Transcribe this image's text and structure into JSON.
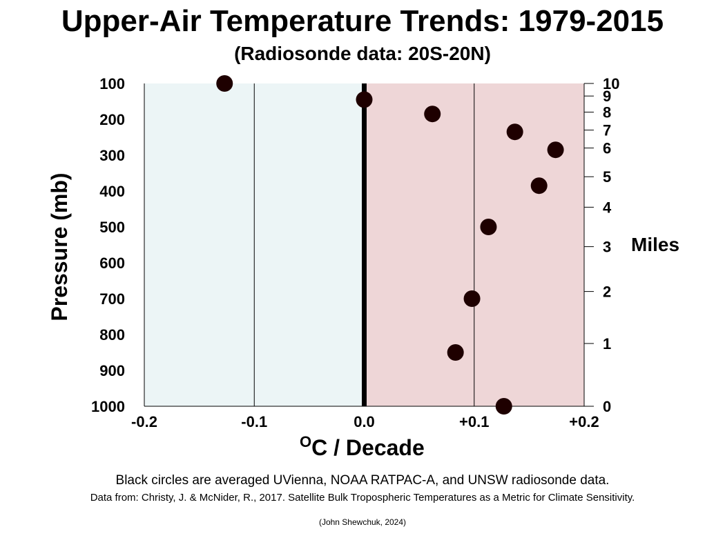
{
  "chart_data": {
    "type": "scatter",
    "title": "Upper-Air Temperature Trends: 1979-2015",
    "subtitle": "(Radiosonde data: 20S-20N)",
    "xlabel": "oC / Decade",
    "xlabel_sup": "O",
    "xlabel_main": "C / Decade",
    "ylabel": "Pressure (mb)",
    "y2label": "Miles",
    "xlim": [
      -0.2,
      0.2
    ],
    "ylim": [
      100,
      1000
    ],
    "y_inverted": true,
    "xticks": [
      {
        "value": -0.2,
        "label": "-0.2"
      },
      {
        "value": -0.1,
        "label": "-0.1"
      },
      {
        "value": 0.0,
        "label": "0.0"
      },
      {
        "value": 0.1,
        "label": "+0.1"
      },
      {
        "value": 0.2,
        "label": "+0.2"
      }
    ],
    "yticks": [
      {
        "value": 100,
        "label": "100"
      },
      {
        "value": 200,
        "label": "200"
      },
      {
        "value": 300,
        "label": "300"
      },
      {
        "value": 400,
        "label": "400"
      },
      {
        "value": 500,
        "label": "500"
      },
      {
        "value": 600,
        "label": "600"
      },
      {
        "value": 700,
        "label": "700"
      },
      {
        "value": 800,
        "label": "800"
      },
      {
        "value": 900,
        "label": "900"
      },
      {
        "value": 1000,
        "label": "1000"
      }
    ],
    "y2ticks": [
      {
        "pressure": 100,
        "label": "10"
      },
      {
        "pressure": 135,
        "label": "9"
      },
      {
        "pressure": 180,
        "label": "8"
      },
      {
        "pressure": 230,
        "label": "7"
      },
      {
        "pressure": 280,
        "label": "6"
      },
      {
        "pressure": 360,
        "label": "5"
      },
      {
        "pressure": 445,
        "label": "4"
      },
      {
        "pressure": 555,
        "label": "3"
      },
      {
        "pressure": 680,
        "label": "2"
      },
      {
        "pressure": 825,
        "label": "1"
      },
      {
        "pressure": 1000,
        "label": "0"
      }
    ],
    "points": [
      {
        "x": -0.127,
        "y": 100
      },
      {
        "x": 0.0,
        "y": 145
      },
      {
        "x": 0.062,
        "y": 185
      },
      {
        "x": 0.137,
        "y": 235
      },
      {
        "x": 0.174,
        "y": 285
      },
      {
        "x": 0.159,
        "y": 385
      },
      {
        "x": 0.113,
        "y": 500
      },
      {
        "x": 0.098,
        "y": 700
      },
      {
        "x": 0.083,
        "y": 850
      },
      {
        "x": 0.127,
        "y": 1000
      }
    ],
    "regions": [
      {
        "from": -0.2,
        "to": 0.0,
        "color": "#ecf5f6"
      },
      {
        "from": 0.0,
        "to": 0.2,
        "color": "#eed6d7"
      }
    ],
    "point_color": "#1e0000",
    "zero_line_color": "#000000",
    "grid": "vertical at ±0.1"
  },
  "notes": {
    "line1": "Black circles are averaged UVienna, NOAA RATPAC-A, and UNSW radiosonde data.",
    "line2": "Data from: Christy, J. & McNider, R., 2017. Satellite Bulk Tropospheric Temperatures as a Metric for Climate Sensitivity.",
    "credit": "(John Shewchuk, 2024)"
  }
}
